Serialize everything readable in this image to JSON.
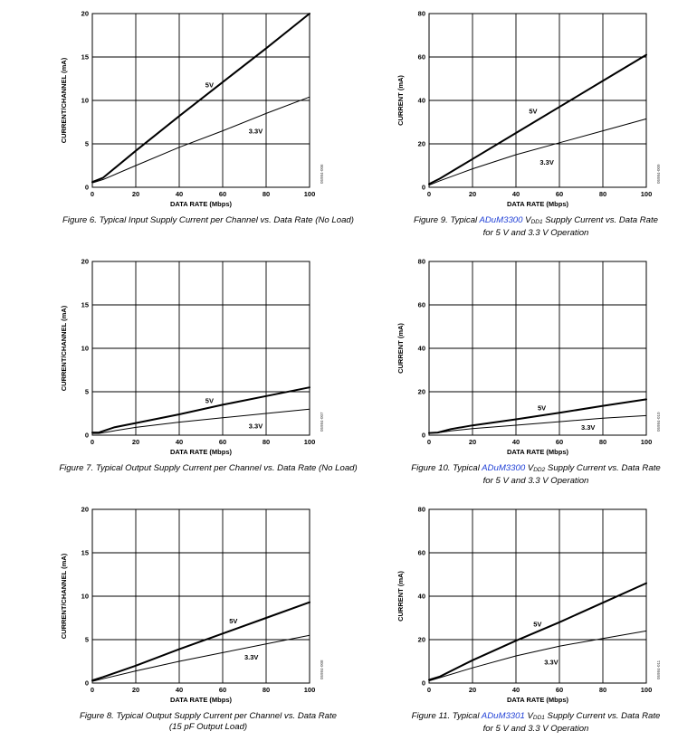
{
  "chart_data": [
    {
      "type": "line",
      "figure_number": "Figure 6.",
      "caption": [
        {
          "text": "Typical Input Supply Current per Channel vs. Data Rate (No Load)"
        }
      ],
      "caption_line2": "",
      "xlabel": "DATA RATE (Mbps)",
      "ylabel": "CURRENT/CHANNEL (mA)",
      "xlim": [
        0,
        100
      ],
      "ylim": [
        0,
        20
      ],
      "xticks": [
        0,
        20,
        40,
        60,
        80,
        100
      ],
      "yticks": [
        0,
        5,
        10,
        15,
        20
      ],
      "grid": true,
      "file_id": "05984-006",
      "series": [
        {
          "name": "5V",
          "width": 2,
          "label_at": [
            52,
            11.5
          ],
          "x": [
            0,
            5,
            20,
            40,
            60,
            80,
            100
          ],
          "y": [
            0.6,
            1.1,
            4.2,
            8.2,
            12.1,
            16.0,
            20.0
          ]
        },
        {
          "name": "3.3V",
          "width": 1,
          "label_at": [
            72,
            6.2
          ],
          "x": [
            0,
            5,
            20,
            40,
            60,
            80,
            100
          ],
          "y": [
            0.5,
            0.9,
            2.5,
            4.6,
            6.5,
            8.5,
            10.4
          ]
        }
      ]
    },
    {
      "type": "line",
      "figure_number": "Figure 9.",
      "caption": [
        {
          "text": "Typical "
        },
        {
          "text": "ADuM3300",
          "link": true
        },
        {
          "text": " V"
        },
        {
          "text": "DD1",
          "sub": true
        },
        {
          "text": " Supply Current vs. Data Rate"
        }
      ],
      "caption_line2": "for 5 V and 3.3 V Operation",
      "xlabel": "DATA RATE (Mbps)",
      "ylabel": "CURRENT (mA)",
      "xlim": [
        0,
        100
      ],
      "ylim": [
        0,
        80
      ],
      "xticks": [
        0,
        20,
        40,
        60,
        80,
        100
      ],
      "yticks": [
        0,
        20,
        40,
        60,
        80
      ],
      "grid": true,
      "file_id": "05984-009",
      "series": [
        {
          "name": "5V",
          "width": 2,
          "label_at": [
            46,
            34
          ],
          "x": [
            0,
            5,
            20,
            40,
            60,
            80,
            100
          ],
          "y": [
            1.5,
            4.0,
            13.0,
            25.0,
            37.0,
            49.0,
            61.0
          ]
        },
        {
          "name": "3.3V",
          "width": 1,
          "label_at": [
            51,
            10.5
          ],
          "x": [
            0,
            5,
            20,
            40,
            60,
            80,
            100
          ],
          "y": [
            1.0,
            3.0,
            8.5,
            15.0,
            20.5,
            26.0,
            31.5
          ]
        }
      ]
    },
    {
      "type": "line",
      "figure_number": "Figure 7.",
      "caption": [
        {
          "text": "Typical Output Supply Current per Channel vs. Data Rate (No Load)"
        }
      ],
      "caption_line2": "",
      "xlabel": "DATA RATE (Mbps)",
      "ylabel": "CURRENT/CHANNEL (mA)",
      "xlim": [
        0,
        100
      ],
      "ylim": [
        0,
        20
      ],
      "xticks": [
        0,
        20,
        40,
        60,
        80,
        100
      ],
      "yticks": [
        0,
        5,
        10,
        15,
        20
      ],
      "grid": true,
      "file_id": "05984-007",
      "series": [
        {
          "name": "5V",
          "width": 2,
          "label_at": [
            52,
            3.7
          ],
          "x": [
            0,
            3,
            10,
            20,
            40,
            60,
            80,
            100
          ],
          "y": [
            0.3,
            0.3,
            0.9,
            1.4,
            2.4,
            3.5,
            4.5,
            5.5
          ]
        },
        {
          "name": "3.3V",
          "width": 1,
          "label_at": [
            72,
            0.8
          ],
          "x": [
            0,
            3,
            10,
            20,
            40,
            60,
            80,
            100
          ],
          "y": [
            0.2,
            0.2,
            0.5,
            0.9,
            1.5,
            2.0,
            2.5,
            3.0
          ]
        }
      ]
    },
    {
      "type": "line",
      "figure_number": "Figure 10.",
      "caption": [
        {
          "text": "Typical "
        },
        {
          "text": "ADuM3300",
          "link": true
        },
        {
          "text": " V"
        },
        {
          "text": "DD2",
          "sub": true
        },
        {
          "text": " Supply Current vs. Data Rate"
        }
      ],
      "caption_line2": "for 5 V and 3.3 V Operation",
      "xlabel": "DATA RATE (Mbps)",
      "ylabel": "CURRENT (mA)",
      "xlim": [
        0,
        100
      ],
      "ylim": [
        0,
        80
      ],
      "xticks": [
        0,
        20,
        40,
        60,
        80,
        100
      ],
      "yticks": [
        0,
        20,
        40,
        60,
        80
      ],
      "grid": true,
      "file_id": "05984-010",
      "series": [
        {
          "name": "5V",
          "width": 2,
          "label_at": [
            50,
            11.5
          ],
          "x": [
            0,
            4,
            10,
            20,
            40,
            60,
            80,
            100
          ],
          "y": [
            1.0,
            1.2,
            2.8,
            4.5,
            7.3,
            10.3,
            13.5,
            16.5
          ]
        },
        {
          "name": "3.3V",
          "width": 1,
          "label_at": [
            70,
            2.5
          ],
          "x": [
            0,
            4,
            10,
            20,
            40,
            60,
            80,
            100
          ],
          "y": [
            1.0,
            1.1,
            2.0,
            3.0,
            4.6,
            6.2,
            7.8,
            9.0
          ]
        }
      ]
    },
    {
      "type": "line",
      "figure_number": "Figure 8.",
      "caption": [
        {
          "text": "Typical Output Supply Current per Channel vs. Data Rate"
        }
      ],
      "caption_line2": "(15 pF Output Load)",
      "xlabel": "DATA RATE (Mbps)",
      "ylabel": "CURRENT/CHANNEL (mA)",
      "xlim": [
        0,
        100
      ],
      "ylim": [
        0,
        20
      ],
      "xticks": [
        0,
        20,
        40,
        60,
        80,
        100
      ],
      "yticks": [
        0,
        5,
        10,
        15,
        20
      ],
      "grid": true,
      "file_id": "05984-008",
      "series": [
        {
          "name": "5V",
          "width": 2,
          "label_at": [
            63,
            6.9
          ],
          "x": [
            0,
            5,
            20,
            40,
            60,
            80,
            100
          ],
          "y": [
            0.3,
            0.7,
            2.0,
            3.9,
            5.7,
            7.5,
            9.3
          ]
        },
        {
          "name": "3.3V",
          "width": 1,
          "label_at": [
            70,
            2.7
          ],
          "x": [
            0,
            5,
            20,
            40,
            60,
            80,
            100
          ],
          "y": [
            0.2,
            0.5,
            1.4,
            2.5,
            3.5,
            4.5,
            5.5
          ]
        }
      ]
    },
    {
      "type": "line",
      "figure_number": "Figure 11.",
      "caption": [
        {
          "text": "Typical "
        },
        {
          "text": "ADuM3301",
          "link": true
        },
        {
          "text": " V"
        },
        {
          "text": "DD1",
          "sub": true
        },
        {
          "text": " Supply Current vs. Data Rate"
        }
      ],
      "caption_line2": "for 5 V and 3.3 V Operation",
      "xlabel": "DATA RATE (Mbps)",
      "ylabel": "CURRENT (mA)",
      "xlim": [
        0,
        100
      ],
      "ylim": [
        0,
        80
      ],
      "xticks": [
        0,
        20,
        40,
        60,
        80,
        100
      ],
      "yticks": [
        0,
        20,
        40,
        60,
        80
      ],
      "grid": true,
      "file_id": "05984-011",
      "series": [
        {
          "name": "5V",
          "width": 2,
          "label_at": [
            48,
            26
          ],
          "x": [
            0,
            5,
            20,
            40,
            60,
            80,
            100
          ],
          "y": [
            1.5,
            3.0,
            10.5,
            19.5,
            28.0,
            37.0,
            46.0
          ]
        },
        {
          "name": "3.3V",
          "width": 1,
          "label_at": [
            53,
            8.5
          ],
          "x": [
            0,
            5,
            20,
            40,
            60,
            80,
            100
          ],
          "y": [
            1.0,
            2.5,
            7.0,
            12.5,
            17.0,
            20.5,
            24.0
          ]
        }
      ]
    }
  ]
}
